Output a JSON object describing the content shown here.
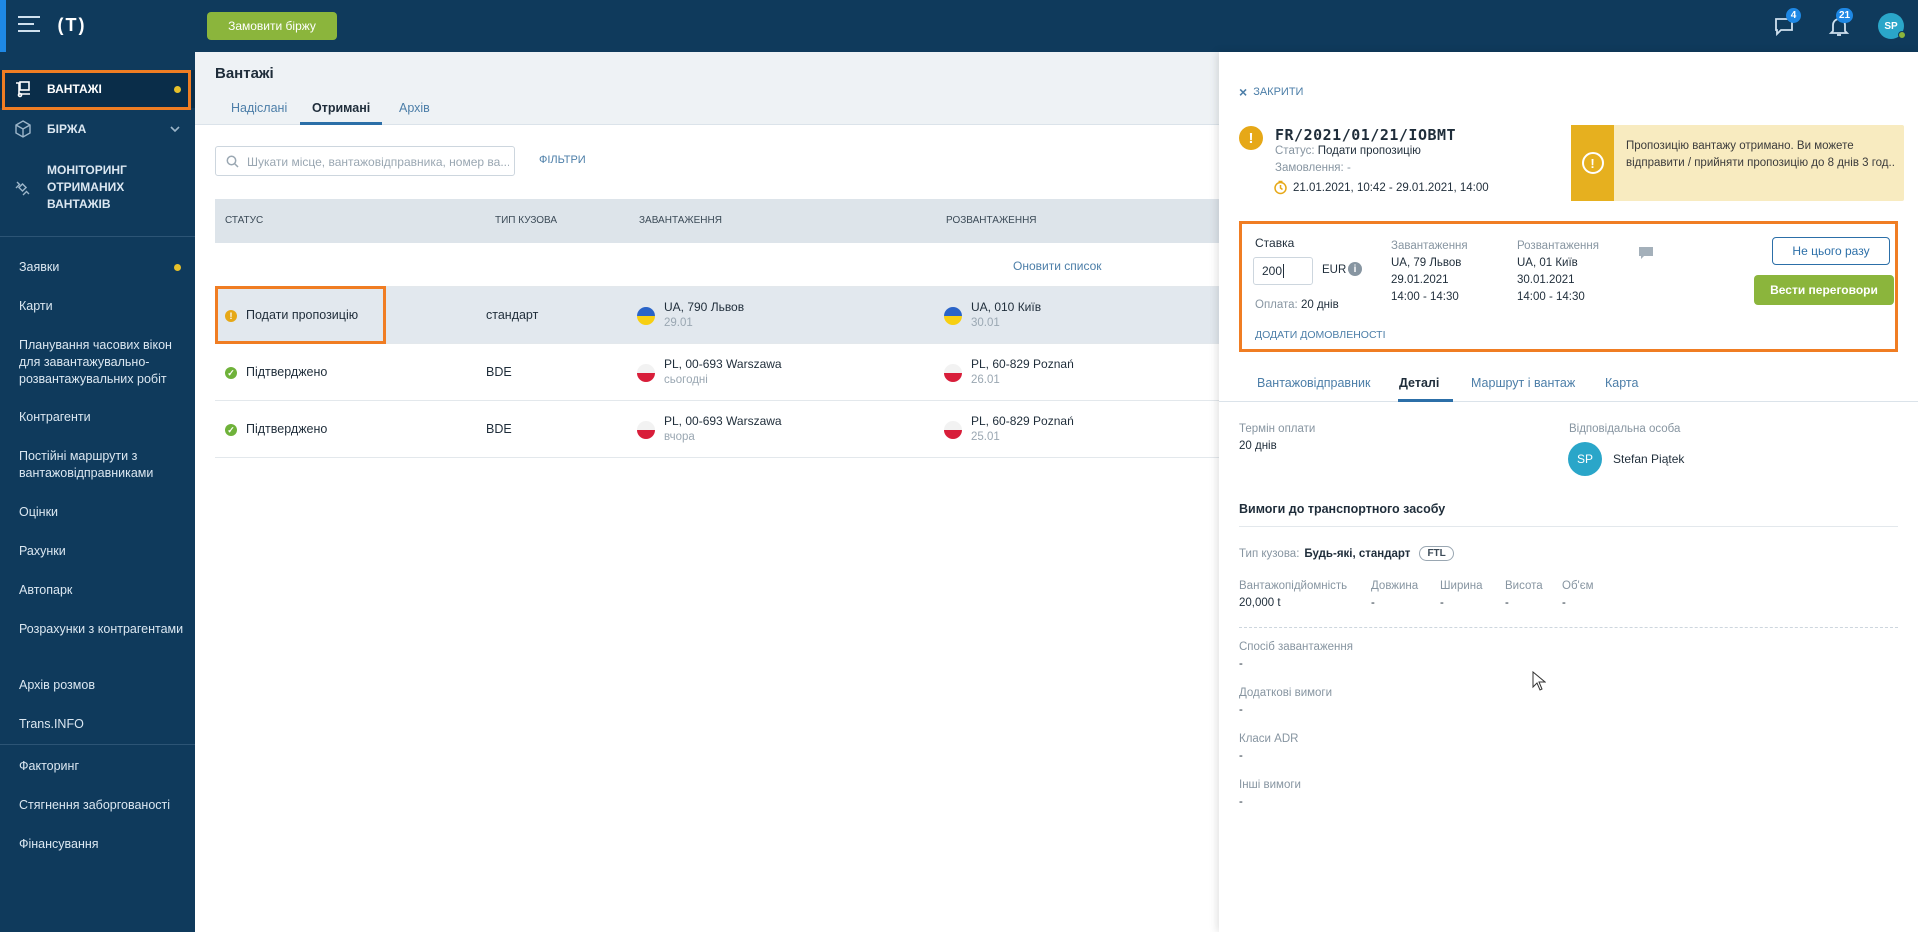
{
  "topbar": {
    "logo": "(T)",
    "order_button": "Замовити біржу",
    "messages_badge": "4",
    "notifications_badge": "21",
    "avatar_initials": "SP"
  },
  "sidebar": {
    "main_items": [
      {
        "label": "ВАНТАЖІ",
        "icon": "cargo-icon",
        "active": true,
        "dot": true
      },
      {
        "label": "БІРЖА",
        "icon": "cube-icon",
        "chevron": true
      },
      {
        "label": "МОНІТОРИНГ ОТРИМАНИХ ВАНТАЖІВ",
        "icon": "satellite-icon"
      }
    ],
    "items": [
      {
        "label": "Заявки",
        "dot": true
      },
      {
        "label": "Карти"
      },
      {
        "label": "Планування часових вікон для завантажувально-розвантажувальних робіт"
      },
      {
        "label": "Контрагенти"
      },
      {
        "label": "Постійні маршрути з вантажовідправниками"
      },
      {
        "label": "Оцінки"
      },
      {
        "label": "Рахунки"
      },
      {
        "label": "Автопарк"
      },
      {
        "label": "Розрахунки з контрагентами"
      },
      {
        "label": "Архів розмов"
      },
      {
        "label": "Trans.INFO"
      },
      {
        "label": "Факторинг"
      },
      {
        "label": "Стягнення заборгованості"
      },
      {
        "label": "Фінансування"
      }
    ]
  },
  "main": {
    "title": "Вантажі",
    "tabs": [
      "Надіслані",
      "Отримані",
      "Архів"
    ],
    "active_tab": "Отримані",
    "search_placeholder": "Шукати місце, вантажовідправника, номер ва...",
    "filters_label": "ФІЛЬТРИ",
    "columns": [
      "СТАТУС",
      "ТИП КУЗОВА",
      "ЗАВАНТАЖЕННЯ",
      "РОЗВАНТАЖЕННЯ"
    ],
    "refresh_label": "Оновити список",
    "rows": [
      {
        "status": "Подати пропозицію",
        "status_type": "warning",
        "body": "стандарт",
        "load_place": "UA, 790 Львов",
        "load_date": "29.01",
        "load_flag": "ua",
        "unload_place": "UA, 010 Київ",
        "unload_date": "30.01",
        "unload_flag": "ua",
        "selected": true
      },
      {
        "status": "Підтверджено",
        "status_type": "ok",
        "body": "BDE",
        "load_place": "PL, 00-693 Warszawa",
        "load_date": "сьогодні",
        "load_flag": "pl",
        "unload_place": "PL, 60-829 Poznań",
        "unload_date": "26.01",
        "unload_flag": "pl"
      },
      {
        "status": "Підтверджено",
        "status_type": "ok",
        "body": "BDE",
        "load_place": "PL, 00-693 Warszawa",
        "load_date": "вчора",
        "load_flag": "pl",
        "unload_place": "PL, 60-829 Poznań",
        "unload_date": "25.01",
        "unload_flag": "pl"
      }
    ]
  },
  "panel": {
    "close_label": "ЗАКРИТИ",
    "reference": "FR/2021/01/21/IOBMT",
    "status_key": "Статус:",
    "status_value": "Подати пропозицію",
    "order_key": "Замовлення:",
    "order_value": "-",
    "dates": "21.01.2021, 10:42 - 29.01.2021, 14:00",
    "notice": "Пропозицію вантажу отримано. Ви можете відправити / прийняти пропозицію до 8 днів 3 год..",
    "offer": {
      "rate_label": "Ставка",
      "rate_value": "200",
      "currency": "EUR",
      "payment_key": "Оплата:",
      "payment_value": "20 днів",
      "add_terms": "ДОДАТИ ДОМОВЛЕНОСТІ",
      "loading": {
        "title": "Завантаження",
        "place": "UA, 79 Львов",
        "date": "29.01.2021",
        "time": "14:00 - 14:30"
      },
      "unloading": {
        "title": "Розвантаження",
        "place": "UA, 01 Київ",
        "date": "30.01.2021",
        "time": "14:00 - 14:30"
      },
      "decline_button": "Не цього разу",
      "negotiate_button": "Вести переговори"
    },
    "tabs": [
      "Вантажовідправник",
      "Деталі",
      "Маршрут і вантаж",
      "Карта"
    ],
    "active_tab": "Деталі",
    "details": {
      "payment_term_key": "Термін оплати",
      "payment_term_value": "20 днів",
      "responsible_key": "Відповідальна особа",
      "responsible_initials": "SP",
      "responsible_name": "Stefan Piątek",
      "vehicle_section": "Вимоги до транспортного засобу",
      "body_type_key": "Тип кузова:",
      "body_type_value": "Будь-які, стандарт",
      "body_type_badge": "FTL",
      "capacity_key": "Вантажопідйомність",
      "capacity_value": "20,000 t",
      "length_key": "Довжина",
      "length_value": "-",
      "width_key": "Ширина",
      "width_value": "-",
      "height_key": "Висота",
      "height_value": "-",
      "volume_key": "Об'єм",
      "volume_value": "-",
      "loading_method_key": "Спосіб завантаження",
      "loading_method_value": "-",
      "extra_key": "Додаткові вимоги",
      "extra_value": "-",
      "adr_key": "Класи ADR",
      "adr_value": "-",
      "other_key": "Інші вимоги",
      "other_value": "-"
    }
  }
}
